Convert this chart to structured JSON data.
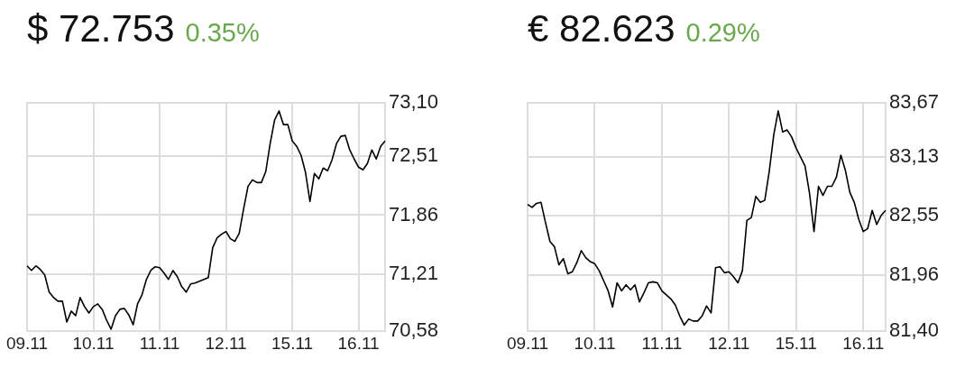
{
  "chart_data": [
    {
      "type": "line",
      "title": "$ 72.753",
      "subtitle": "0.35%",
      "grid": true,
      "categories": [
        "09.11",
        null,
        null,
        null,
        null,
        null,
        null,
        null,
        null,
        null,
        null,
        null,
        null,
        null,
        null,
        "10.11",
        null,
        null,
        null,
        null,
        null,
        null,
        null,
        null,
        null,
        null,
        null,
        null,
        null,
        null,
        "11.11",
        null,
        null,
        null,
        null,
        null,
        null,
        null,
        null,
        null,
        null,
        null,
        null,
        null,
        null,
        "12.11",
        null,
        null,
        null,
        null,
        null,
        null,
        null,
        null,
        null,
        null,
        null,
        null,
        null,
        null,
        "15.11",
        null,
        null,
        null,
        null,
        null,
        null,
        null,
        null,
        null,
        null,
        null,
        null,
        null,
        null,
        "16.11",
        null,
        null,
        null,
        null,
        null,
        null
      ],
      "ylim": [
        70.58,
        73.1
      ],
      "yticks": [
        {
          "value": 70.58,
          "label": "70,58"
        },
        {
          "value": 71.21,
          "label": "71,21"
        },
        {
          "value": 71.86,
          "label": "71,86"
        },
        {
          "value": 72.51,
          "label": "72,51"
        },
        {
          "value": 73.1,
          "label": "73,10"
        }
      ],
      "series": [
        {
          "color": "#000000",
          "values": [
            71.3,
            71.25,
            71.3,
            71.26,
            71.2,
            71.01,
            70.95,
            70.91,
            70.91,
            70.68,
            70.8,
            70.75,
            70.95,
            70.85,
            70.78,
            70.85,
            70.88,
            70.82,
            70.7,
            70.6,
            70.75,
            70.82,
            70.83,
            70.76,
            70.65,
            70.88,
            70.98,
            71.15,
            71.25,
            71.29,
            71.28,
            71.22,
            71.15,
            71.25,
            71.18,
            71.07,
            71.01,
            71.1,
            71.11,
            71.13,
            71.15,
            71.17,
            71.5,
            71.61,
            71.65,
            71.68,
            71.6,
            71.57,
            71.66,
            71.93,
            72.18,
            72.25,
            72.22,
            72.22,
            72.34,
            72.65,
            72.91,
            73.01,
            72.86,
            72.86,
            72.68,
            72.62,
            72.52,
            72.33,
            72.01,
            72.32,
            72.26,
            72.38,
            72.35,
            72.47,
            72.65,
            72.73,
            72.74,
            72.58,
            72.48,
            72.39,
            72.36,
            72.43,
            72.58,
            72.48,
            72.62,
            72.68
          ]
        }
      ]
    },
    {
      "type": "line",
      "title": "€ 82.623",
      "subtitle": "0.29%",
      "grid": true,
      "categories": [
        "09.11",
        null,
        null,
        null,
        null,
        null,
        null,
        null,
        null,
        null,
        null,
        null,
        null,
        null,
        null,
        "10.11",
        null,
        null,
        null,
        null,
        null,
        null,
        null,
        null,
        null,
        null,
        null,
        null,
        null,
        null,
        "11.11",
        null,
        null,
        null,
        null,
        null,
        null,
        null,
        null,
        null,
        null,
        null,
        null,
        null,
        null,
        "12.11",
        null,
        null,
        null,
        null,
        null,
        null,
        null,
        null,
        null,
        null,
        null,
        null,
        null,
        null,
        "15.11",
        null,
        null,
        null,
        null,
        null,
        null,
        null,
        null,
        null,
        null,
        null,
        null,
        null,
        null,
        "16.11",
        null,
        null,
        null,
        null,
        null
      ],
      "ylim": [
        81.4,
        83.67
      ],
      "yticks": [
        {
          "value": 81.4,
          "label": "81,40"
        },
        {
          "value": 81.96,
          "label": "81,96"
        },
        {
          "value": 82.55,
          "label": "82,55"
        },
        {
          "value": 83.13,
          "label": "83,13"
        },
        {
          "value": 83.67,
          "label": "83,67"
        }
      ],
      "series": [
        {
          "color": "#000000",
          "values": [
            82.66,
            82.63,
            82.67,
            82.68,
            82.48,
            82.29,
            82.24,
            82.06,
            82.12,
            81.97,
            81.99,
            82.08,
            82.2,
            82.13,
            82.09,
            82.07,
            82,
            81.9,
            81.8,
            81.64,
            81.88,
            81.8,
            81.86,
            81.81,
            81.86,
            81.69,
            81.78,
            81.88,
            81.89,
            81.88,
            81.8,
            81.76,
            81.72,
            81.66,
            81.55,
            81.46,
            81.52,
            81.5,
            81.5,
            81.55,
            81.65,
            81.58,
            82.03,
            82.04,
            81.98,
            81.99,
            81.94,
            81.88,
            82,
            82.5,
            82.53,
            82.74,
            82.68,
            82.7,
            82.99,
            83.35,
            83.59,
            83.38,
            83.4,
            83.33,
            83.22,
            83.13,
            83.04,
            82.77,
            82.39,
            82.84,
            82.75,
            82.84,
            82.84,
            82.93,
            83.15,
            83,
            82.78,
            82.68,
            82.51,
            82.39,
            82.42,
            82.6,
            82.46,
            82.55,
            82.6
          ]
        }
      ]
    }
  ]
}
